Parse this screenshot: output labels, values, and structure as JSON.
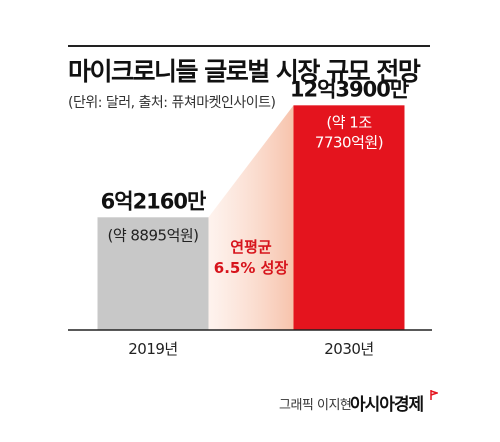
{
  "header": {
    "title": "마이크로니들 글로벌 시장 규모 전망",
    "subtitle": "(단위: 달러, 출처: 퓨쳐마켓인사이트)"
  },
  "chart_data": {
    "type": "bar",
    "categories": [
      "2019년",
      "2030년"
    ],
    "values": [
      621600000,
      1239000000
    ],
    "value_labels": [
      "6억2160만",
      "12억3900만"
    ],
    "converted_labels": [
      [
        "(약 8895억원)"
      ],
      [
        "(약 1조",
        "7730억원)"
      ]
    ],
    "growth_annotation": [
      "연평균",
      "6.5% 성장"
    ],
    "ylim": [
      0,
      1500000000
    ],
    "grid": false,
    "colors": {
      "bar_2019": "#c8c8c8",
      "bar_2030": "#e4141e",
      "growth_band": "#f9d2c0",
      "annotation_text": "#d7141c"
    }
  },
  "footer": {
    "credit": "그래픽 이지현",
    "logo_text": "아시아경제",
    "logo_icon": "red-flag-icon"
  }
}
